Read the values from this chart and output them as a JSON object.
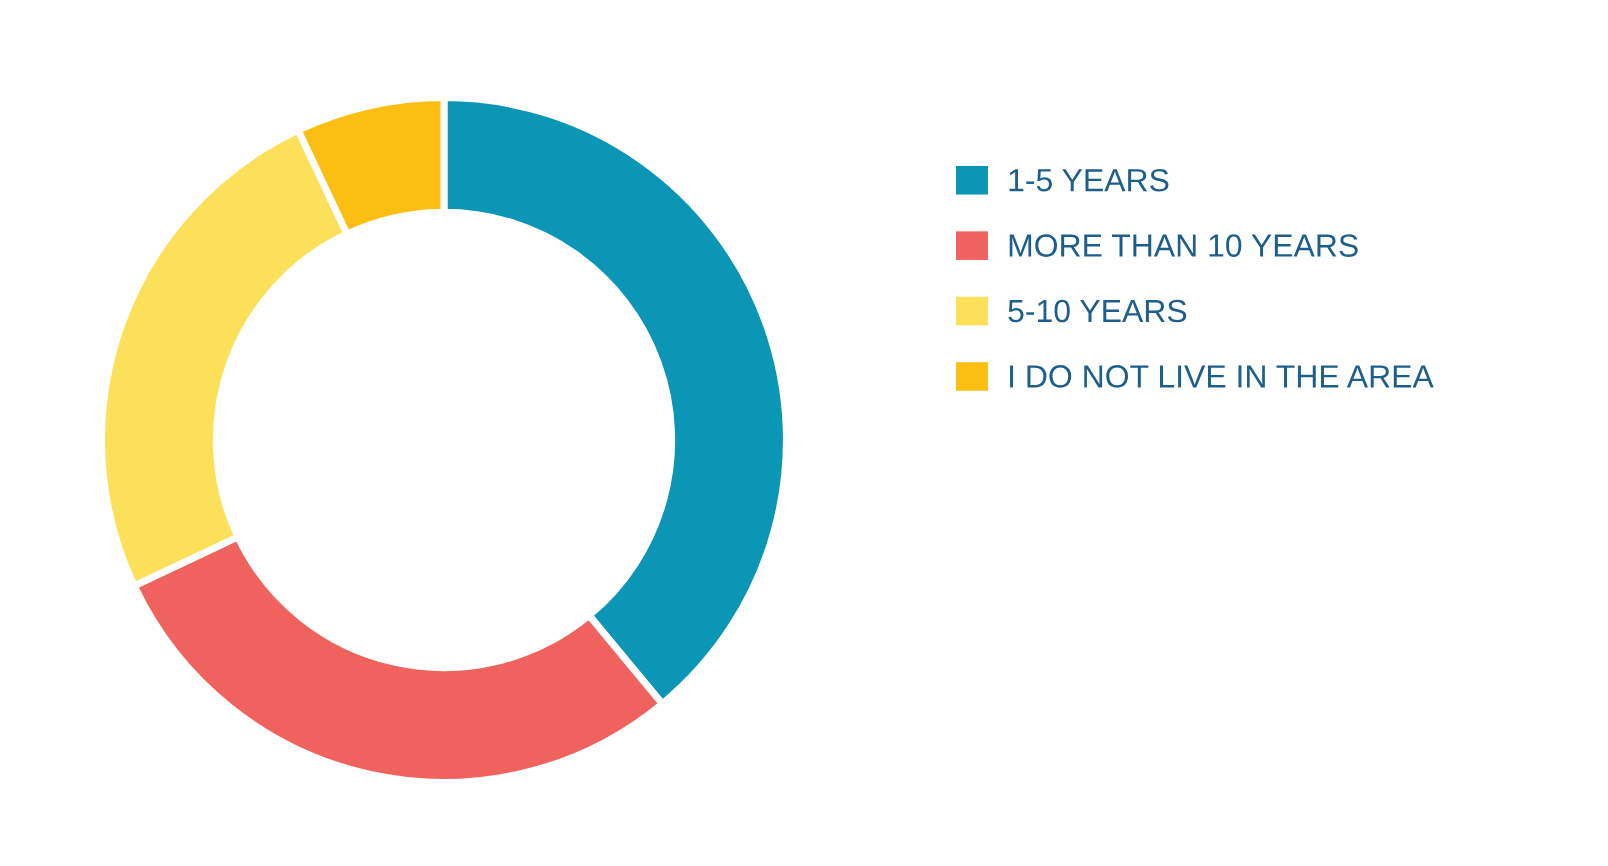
{
  "chart_data": {
    "type": "donut",
    "categories": [
      "1-5 YEARS",
      "MORE THAN 10 YEARS",
      "5-10 YEARS",
      "I DO NOT LIVE IN THE AREA"
    ],
    "values": [
      39,
      29,
      25,
      7
    ],
    "colors": [
      "#0b96b5",
      "#f0625d",
      "#fde05a",
      "#fbbf14"
    ],
    "legend": "right"
  }
}
